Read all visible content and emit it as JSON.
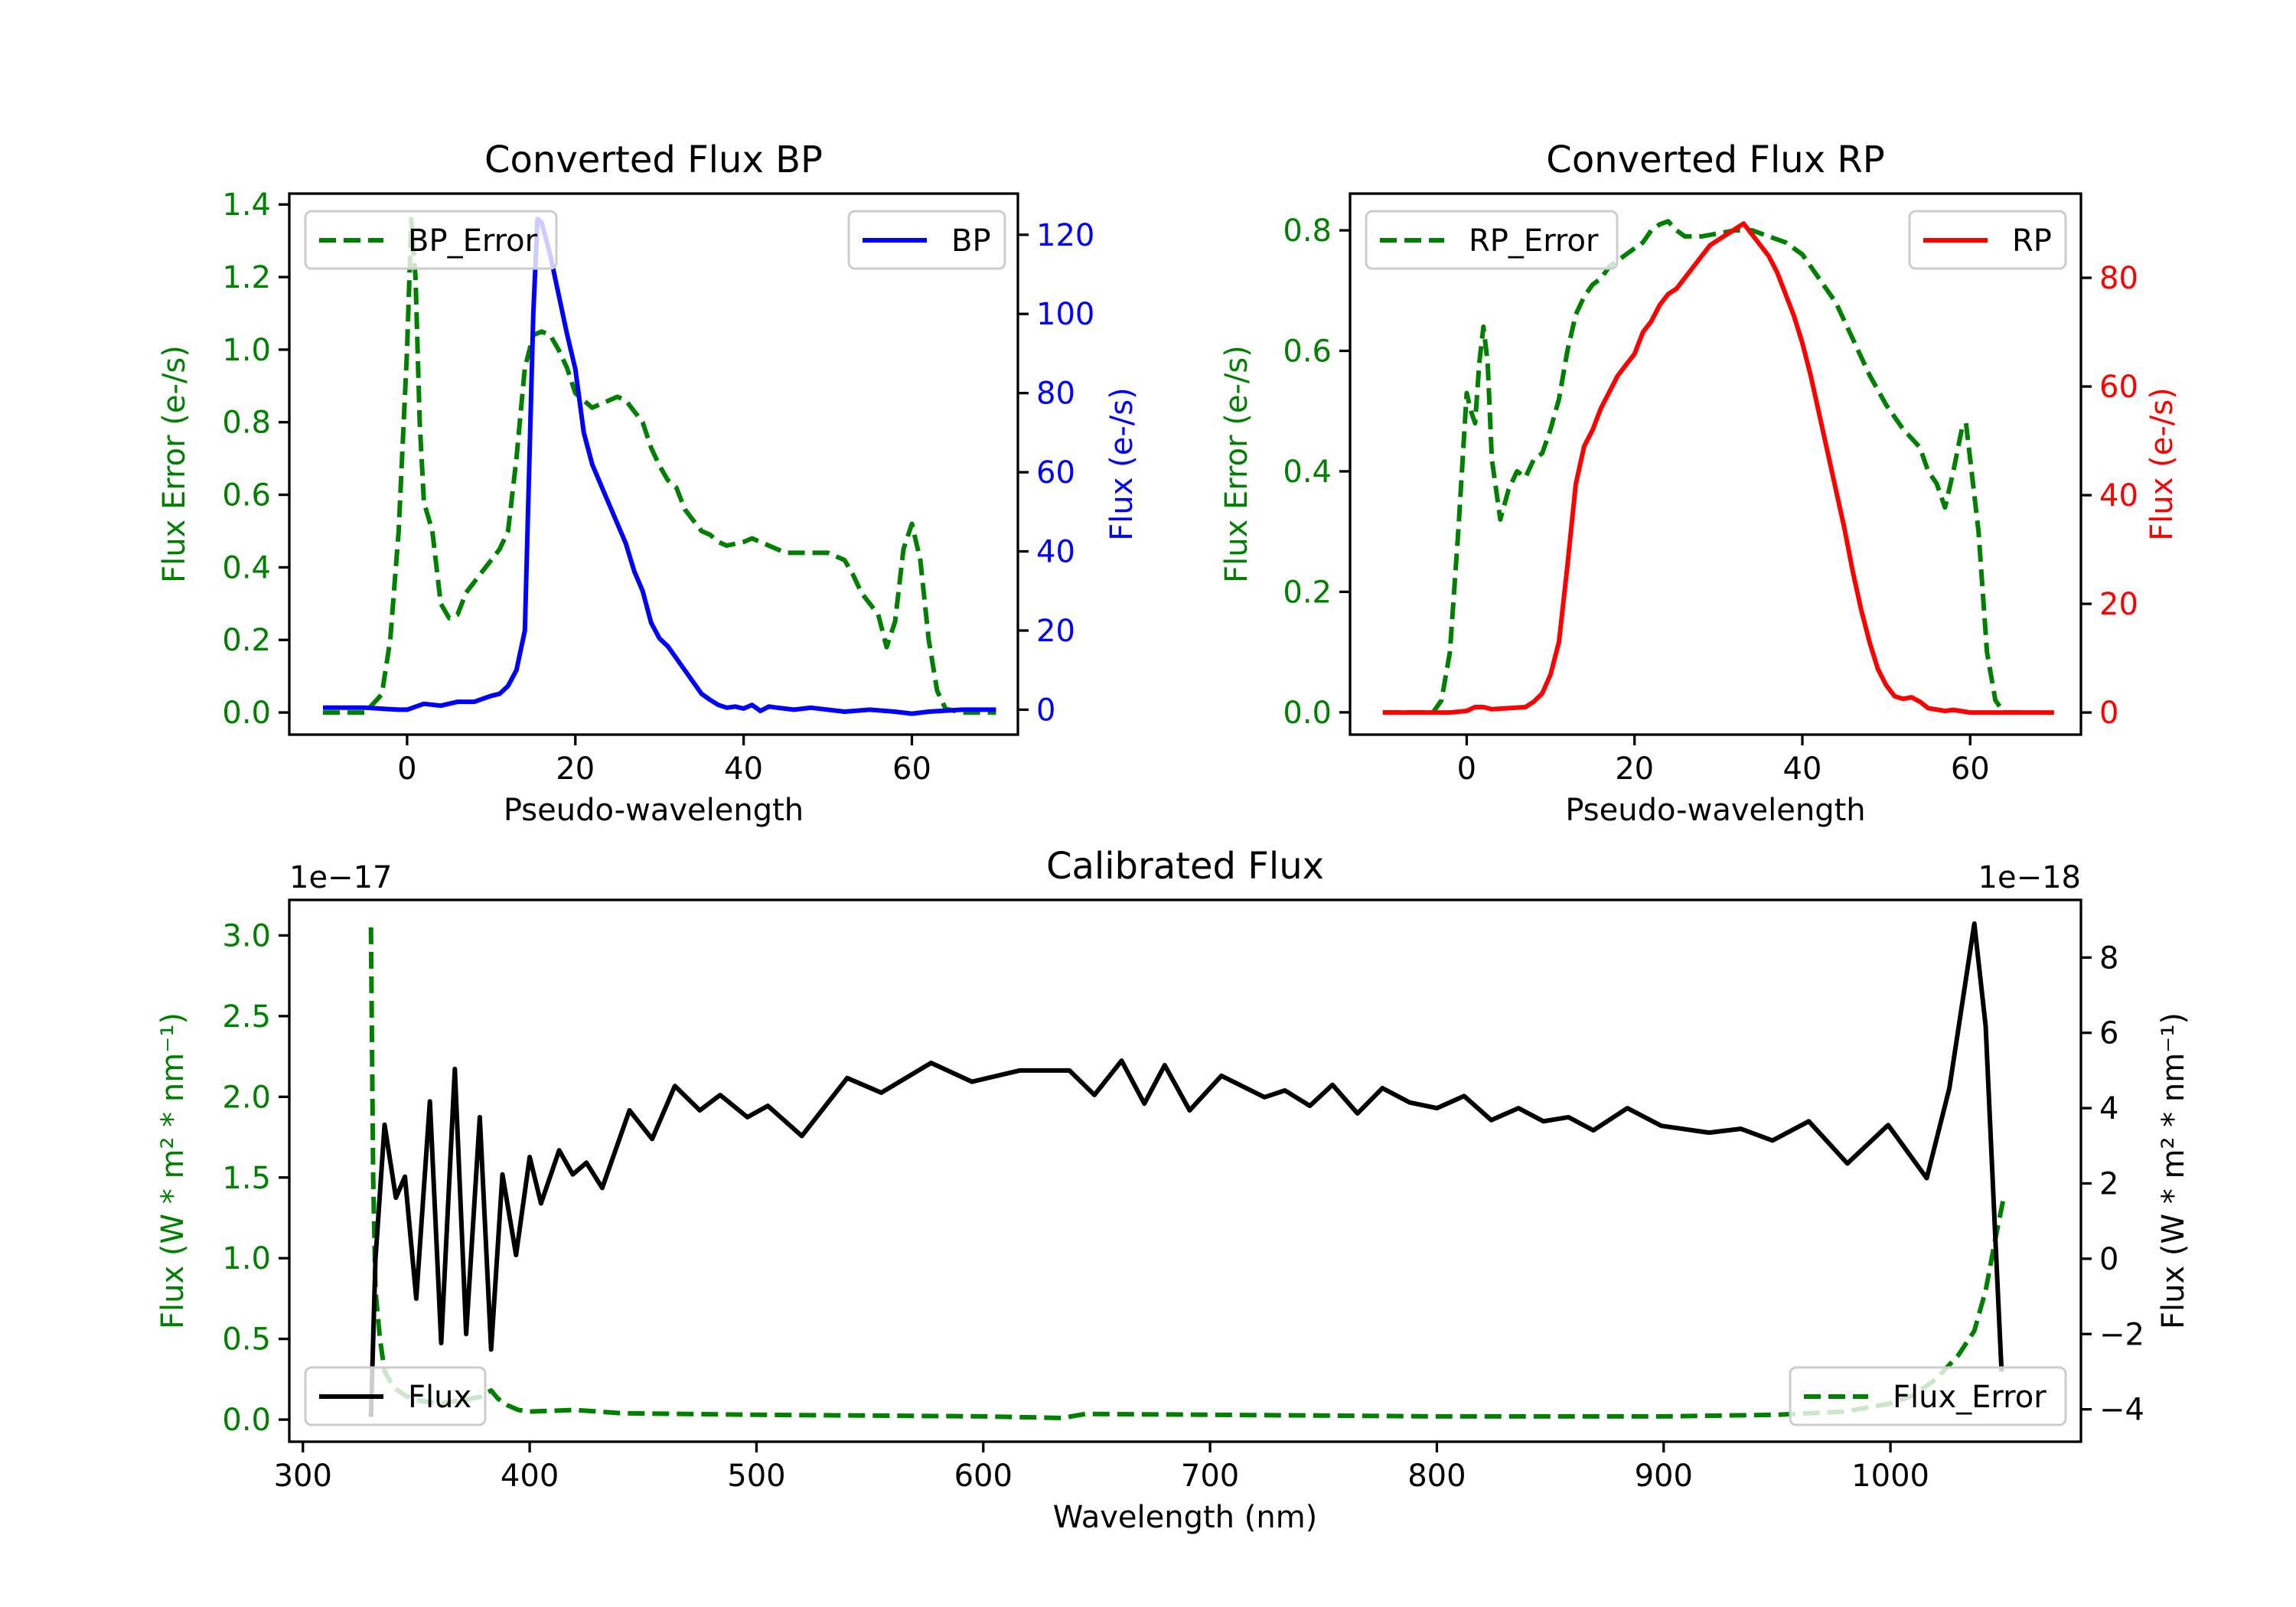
{
  "chart_data": [
    {
      "type": "line",
      "title": "Converted Flux BP",
      "xlabel": "Pseudo-wavelength",
      "ylabel_left": "Flux Error (e-/s)",
      "ylabel_right": "Flux (e-/s)",
      "xlim": [
        -14,
        72.6
      ],
      "ylim_left": [
        -0.061,
        1.43
      ],
      "ylim_right": [
        -6.3,
        130.4
      ],
      "xticks": [
        0,
        20,
        40,
        60
      ],
      "yticks_left": [
        0.0,
        0.2,
        0.4,
        0.6,
        0.8,
        1.0,
        1.2,
        1.4
      ],
      "yticks_left_labels": [
        "0.0",
        "0.2",
        "0.4",
        "0.6",
        "0.8",
        "1.0",
        "1.2",
        "1.4"
      ],
      "yticks_right": [
        0,
        20,
        40,
        60,
        80,
        100,
        120
      ],
      "left_color": "#008000",
      "right_color": "#0000ff",
      "series": [
        {
          "name": "BP_Error",
          "axis": "left",
          "color": "#008000",
          "style": "dashed",
          "legend": "top-left",
          "x": [
            -10,
            -5,
            -3,
            -2,
            -1,
            0,
            0.5,
            1,
            1.5,
            2,
            3,
            4,
            5,
            6,
            7,
            8,
            9,
            10,
            11,
            12,
            13,
            14,
            15,
            16,
            17,
            18,
            19,
            20,
            21,
            22,
            23,
            24,
            25,
            26,
            27,
            28,
            29,
            30,
            31,
            32,
            33,
            34,
            35,
            36,
            37,
            38,
            40,
            41,
            42,
            44,
            45,
            46,
            48,
            50,
            52,
            53,
            54,
            55,
            56,
            57,
            58,
            59,
            60,
            61,
            62,
            63,
            64,
            66,
            70
          ],
          "y": [
            0,
            0,
            0.05,
            0.2,
            0.5,
            1.0,
            1.36,
            1.2,
            0.8,
            0.58,
            0.5,
            0.3,
            0.26,
            0.27,
            0.33,
            0.36,
            0.39,
            0.42,
            0.45,
            0.5,
            0.7,
            0.95,
            1.04,
            1.05,
            1.04,
            1.0,
            0.95,
            0.88,
            0.86,
            0.84,
            0.85,
            0.86,
            0.87,
            0.86,
            0.83,
            0.8,
            0.73,
            0.68,
            0.64,
            0.62,
            0.56,
            0.53,
            0.5,
            0.49,
            0.47,
            0.46,
            0.47,
            0.48,
            0.47,
            0.45,
            0.44,
            0.44,
            0.44,
            0.44,
            0.42,
            0.38,
            0.33,
            0.3,
            0.27,
            0.18,
            0.25,
            0.45,
            0.52,
            0.42,
            0.2,
            0.06,
            0.01,
            0,
            0
          ]
        },
        {
          "name": "BP",
          "axis": "right",
          "color": "#0000ff",
          "style": "solid",
          "legend": "top-right",
          "x": [
            -10,
            -5,
            -1,
            0,
            2,
            4,
            6,
            8,
            10,
            11,
            12,
            13,
            14,
            14.5,
            15,
            15.5,
            16,
            17,
            18,
            19,
            20,
            21,
            22,
            23,
            24,
            25,
            26,
            27,
            28,
            29,
            30,
            31,
            32,
            33,
            34,
            35,
            36,
            37,
            38,
            39,
            40,
            41,
            42,
            43,
            44,
            46,
            48,
            52,
            55,
            58,
            60,
            62,
            66,
            70
          ],
          "y": [
            0.5,
            0.5,
            0,
            0,
            1.5,
            1,
            2,
            2,
            3.5,
            4,
            6,
            10,
            20,
            60,
            100,
            124,
            123,
            115,
            105,
            95,
            86,
            70,
            62,
            57,
            52,
            47,
            42,
            35,
            30,
            22,
            18,
            16,
            13,
            10,
            7,
            4,
            2.5,
            1.2,
            0.5,
            0.8,
            0.3,
            1.2,
            -0.3,
            0.8,
            0.5,
            0,
            0.5,
            -0.5,
            0,
            -0.5,
            -1,
            -0.5,
            0,
            0
          ]
        }
      ]
    },
    {
      "type": "line",
      "title": "Converted Flux RP",
      "xlabel": "Pseudo-wavelength",
      "ylabel_left": "Flux Error (e-/s)",
      "ylabel_right": "Flux (e-/s)",
      "xlim": [
        -13.9,
        73.2
      ],
      "ylim_left": [
        -0.037,
        0.861
      ],
      "ylim_right": [
        -4.07,
        95.5
      ],
      "xticks": [
        0,
        20,
        40,
        60
      ],
      "yticks_left": [
        0.0,
        0.2,
        0.4,
        0.6,
        0.8
      ],
      "yticks_left_labels": [
        "0.0",
        "0.2",
        "0.4",
        "0.6",
        "0.8"
      ],
      "yticks_right": [
        0,
        20,
        40,
        60,
        80
      ],
      "left_color": "#008000",
      "right_color": "#ff0000",
      "series": [
        {
          "name": "RP_Error",
          "axis": "left",
          "color": "#008000",
          "style": "dashed",
          "legend": "top-left",
          "x": [
            -10,
            -4,
            -3,
            -2,
            -1,
            0,
            0.5,
            1,
            1.5,
            2,
            2.5,
            3,
            4,
            5,
            6,
            7,
            8,
            9,
            10,
            11,
            12,
            13,
            14,
            15,
            16,
            17,
            18,
            19,
            20,
            21,
            22,
            23,
            24,
            25,
            26,
            28,
            30,
            32,
            34,
            36,
            38,
            40,
            42,
            44,
            46,
            48,
            50,
            52,
            54,
            55,
            56,
            57,
            58,
            59,
            59.5,
            60,
            61,
            62,
            63,
            64,
            66
          ],
          "y": [
            0,
            0,
            0.02,
            0.1,
            0.3,
            0.53,
            0.5,
            0.48,
            0.58,
            0.64,
            0.58,
            0.42,
            0.32,
            0.37,
            0.4,
            0.39,
            0.42,
            0.43,
            0.47,
            0.52,
            0.6,
            0.66,
            0.69,
            0.71,
            0.72,
            0.74,
            0.75,
            0.76,
            0.77,
            0.78,
            0.8,
            0.81,
            0.815,
            0.8,
            0.79,
            0.79,
            0.795,
            0.8,
            0.8,
            0.79,
            0.78,
            0.76,
            0.72,
            0.68,
            0.62,
            0.56,
            0.51,
            0.47,
            0.44,
            0.4,
            0.38,
            0.34,
            0.4,
            0.47,
            0.48,
            0.42,
            0.3,
            0.1,
            0.02,
            0,
            0
          ]
        },
        {
          "name": "RP",
          "axis": "right",
          "color": "#ff0000",
          "style": "solid",
          "legend": "top-right",
          "x": [
            -10,
            -2,
            0,
            1,
            2,
            3,
            5,
            7,
            8,
            9,
            10,
            11,
            12,
            13,
            14,
            15,
            16,
            17,
            18,
            19,
            20,
            21,
            22,
            23,
            24,
            25,
            26,
            27,
            28,
            29,
            30,
            31,
            32,
            33,
            34,
            35,
            36,
            37,
            38,
            39,
            40,
            41,
            42,
            43,
            44,
            45,
            46,
            47,
            48,
            49,
            50,
            51,
            52,
            53,
            54,
            55,
            57,
            58,
            60,
            70
          ],
          "y": [
            0,
            0,
            0.3,
            1,
            1,
            0.6,
            0.8,
            1,
            2,
            3.5,
            7,
            13,
            27,
            42,
            49,
            52,
            56,
            59,
            62,
            64,
            66,
            70,
            72,
            75,
            77,
            78,
            80,
            82,
            84,
            86,
            87,
            88,
            89,
            90,
            88,
            86,
            84,
            81,
            77,
            73,
            68,
            62,
            55,
            48,
            41,
            34,
            26,
            19,
            13,
            8,
            5,
            3,
            2.5,
            2.8,
            2,
            0.8,
            0.3,
            0.5,
            0,
            0
          ]
        }
      ]
    },
    {
      "type": "line",
      "title": "Calibrated Flux",
      "xlabel": "Wavelength (nm)",
      "ylabel_left": "Flux (W * m^2 * nm^-1)",
      "ylabel_right": "Flux (W * m^2 * nm^-1)",
      "offset_left": "1e−17",
      "offset_right": "1e−18",
      "xlim": [
        294,
        1084
      ],
      "ylim_left": [
        -0.137,
        3.22
      ],
      "ylim_right": [
        -4.86,
        9.53
      ],
      "xticks": [
        300,
        400,
        500,
        600,
        700,
        800,
        900,
        1000
      ],
      "yticks_left": [
        0.0,
        0.5,
        1.0,
        1.5,
        2.0,
        2.5,
        3.0
      ],
      "yticks_left_labels": [
        "0.0",
        "0.5",
        "1.0",
        "1.5",
        "2.0",
        "2.5",
        "3.0"
      ],
      "yticks_right": [
        -4,
        -2,
        0,
        2,
        4,
        6,
        8
      ],
      "yticks_right_labels": [
        "−4",
        "−2",
        "0",
        "2",
        "4",
        "6",
        "8"
      ],
      "left_color": "#008000",
      "right_color": "#000000",
      "series": [
        {
          "name": "Flux_Error",
          "axis": "left",
          "color": "#008000",
          "style": "dashed",
          "legend": "bottom-right",
          "x": [
            330,
            331,
            332,
            334,
            336,
            340,
            345,
            350,
            360,
            370,
            378,
            383,
            386,
            390,
            395,
            400,
            420,
            440,
            500,
            600,
            635,
            645,
            700,
            800,
            900,
            950,
            980,
            1000,
            1010,
            1020,
            1030,
            1037,
            1042,
            1046,
            1050
          ],
          "y": [
            3.05,
            1.5,
            0.8,
            0.5,
            0.3,
            0.2,
            0.15,
            0.12,
            0.1,
            0.12,
            0.14,
            0.18,
            0.13,
            0.09,
            0.06,
            0.05,
            0.06,
            0.04,
            0.03,
            0.02,
            0.01,
            0.035,
            0.03,
            0.02,
            0.02,
            0.03,
            0.05,
            0.1,
            0.15,
            0.25,
            0.4,
            0.55,
            0.8,
            1.1,
            1.38
          ]
        },
        {
          "name": "Flux",
          "axis": "right",
          "color": "#000000",
          "style": "solid",
          "legend": "bottom-left",
          "x": [
            330,
            332,
            336,
            341,
            345,
            350,
            356,
            361,
            367,
            372,
            378,
            383,
            388,
            394,
            400,
            405,
            413,
            419,
            425,
            432,
            444,
            454,
            464,
            475,
            484,
            496,
            505,
            520,
            540,
            555,
            577,
            595,
            616,
            638,
            649,
            661,
            671,
            680,
            691,
            705,
            724,
            733,
            744,
            754,
            765,
            776,
            788,
            800,
            812,
            824,
            836,
            847,
            858,
            869,
            884,
            899,
            920,
            934,
            948,
            964,
            981,
            999,
            1016,
            1026,
            1037,
            1042,
            1046,
            1049
          ],
          "y": [
            -4.2,
            0,
            3.56,
            1.62,
            2.18,
            -1.06,
            4.18,
            -2.24,
            5.04,
            -2.0,
            3.76,
            -2.41,
            2.24,
            0.1,
            2.7,
            1.47,
            2.88,
            2.24,
            2.55,
            1.88,
            3.94,
            3.18,
            4.59,
            3.94,
            4.35,
            3.76,
            4.06,
            3.26,
            4.8,
            4.41,
            5.2,
            4.7,
            5.0,
            5.0,
            4.35,
            5.26,
            4.12,
            5.14,
            3.94,
            4.86,
            4.29,
            4.47,
            4.06,
            4.62,
            3.86,
            4.53,
            4.15,
            4.0,
            4.32,
            3.68,
            4.0,
            3.65,
            3.76,
            3.41,
            4.0,
            3.53,
            3.35,
            3.45,
            3.14,
            3.65,
            2.53,
            3.55,
            2.14,
            4.53,
            8.9,
            6.18,
            0.88,
            -3.0
          ]
        }
      ]
    }
  ]
}
